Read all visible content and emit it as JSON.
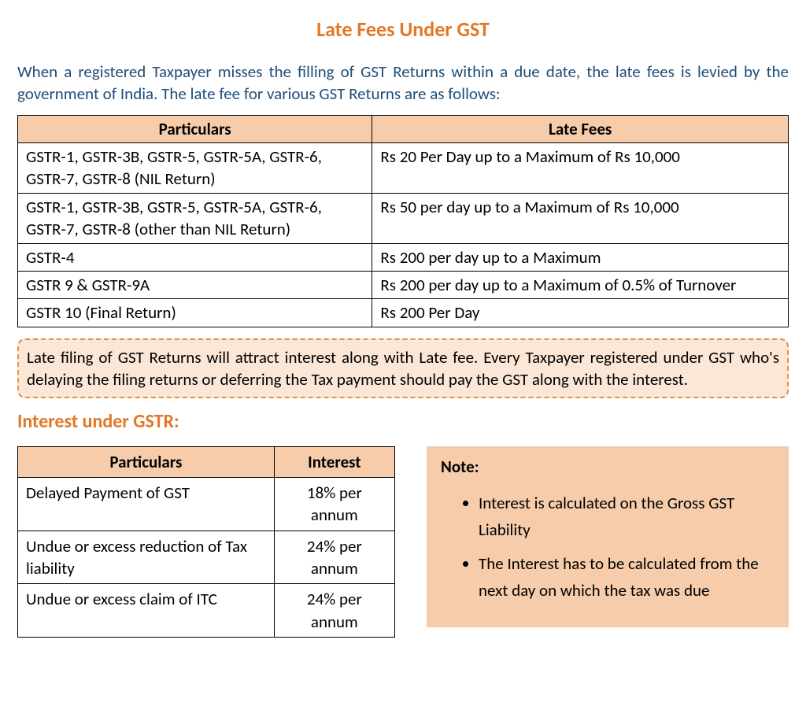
{
  "colors": {
    "accent": "#e37728",
    "heading_text": "#1f4e79",
    "table_header_bg": "#f6ccaa",
    "callout_bg": "#fce7d6",
    "callout_border": "#e48f41",
    "note_bg": "#f6ccaa"
  },
  "title": "Late Fees Under GST",
  "intro": "When a registered Taxpayer misses the filling of GST Returns within a due date, the late fees is levied by the government of India. The late fee for various GST Returns are as follows:",
  "late_fees_table": {
    "columns": [
      "Particulars",
      "Late Fees"
    ],
    "col_widths": [
      "46%",
      "54%"
    ],
    "rows": [
      [
        "GSTR-1, GSTR-3B, GSTR-5, GSTR-5A, GSTR-6, GSTR-7, GSTR-8 (NIL Return)",
        "Rs 20 Per Day up to a Maximum of Rs 10,000"
      ],
      [
        "GSTR-1, GSTR-3B, GSTR-5, GSTR-5A, GSTR-6, GSTR-7, GSTR-8 (other than NIL Return)",
        "Rs 50 per day up to a Maximum of Rs 10,000"
      ],
      [
        "GSTR-4",
        "Rs 200 per day up to a Maximum"
      ],
      [
        "GSTR 9 & GSTR-9A",
        "Rs 200 per day up to a Maximum of 0.5% of Turnover"
      ],
      [
        "GSTR 10 (Final Return)",
        "Rs 200 Per Day"
      ]
    ]
  },
  "callout": "Late filing of GST Returns will attract interest along with Late fee. Every Taxpayer registered under GST who's delaying the filing returns or deferring the Tax payment should pay the GST along with the interest.",
  "subheading": "Interest under GSTR:",
  "interest_table": {
    "columns": [
      "Particulars",
      "Interest"
    ],
    "col_widths": [
      "68%",
      "32%"
    ],
    "rows": [
      [
        "Delayed Payment of GST",
        "18% per annum"
      ],
      [
        "Undue or excess reduction of Tax liability",
        "24% per annum"
      ],
      [
        "Undue or excess claim of ITC",
        "24% per annum"
      ]
    ]
  },
  "note": {
    "label": "Note:",
    "items": [
      "Interest is calculated on the Gross GST Liability",
      "The Interest has to be calculated from the next day on which the tax was due"
    ]
  }
}
